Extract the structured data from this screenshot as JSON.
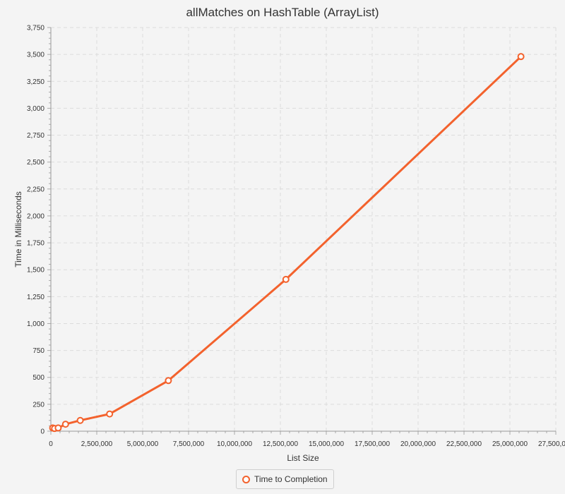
{
  "chart_data": {
    "type": "line",
    "title": "allMatches on HashTable (ArrayList)",
    "xlabel": "List Size",
    "ylabel": "Time in Milliseconds",
    "xlim": [
      0,
      27500000
    ],
    "ylim": [
      0,
      3750
    ],
    "x_ticks": [
      0,
      2500000,
      5000000,
      7500000,
      10000000,
      12500000,
      15000000,
      17500000,
      20000000,
      22500000,
      25000000,
      27500000
    ],
    "x_tick_labels": [
      "0",
      "2,500,000",
      "5,000,000",
      "7,500,000",
      "10,000,000",
      "12,500,000",
      "15,000,000",
      "17,500,000",
      "20,000,000",
      "22,500,000",
      "25,000,000",
      "27,500,000"
    ],
    "y_ticks": [
      0,
      250,
      500,
      750,
      1000,
      1250,
      1500,
      1750,
      2000,
      2250,
      2500,
      2750,
      3000,
      3250,
      3500,
      3750
    ],
    "y_tick_labels": [
      "0",
      "250",
      "500",
      "750",
      "1,000",
      "1,250",
      "1,500",
      "1,750",
      "2,000",
      "2,250",
      "2,500",
      "2,750",
      "3,000",
      "3,250",
      "3,500",
      "3,750"
    ],
    "grid": true,
    "legend_position": "bottom",
    "series": [
      {
        "name": "Time to Completion",
        "color": "#f3622d",
        "x": [
          100000,
          200000,
          400000,
          800000,
          1600000,
          3200000,
          6400000,
          12800000,
          25600000
        ],
        "y": [
          30,
          25,
          30,
          65,
          100,
          160,
          470,
          1410,
          3480
        ]
      }
    ]
  }
}
